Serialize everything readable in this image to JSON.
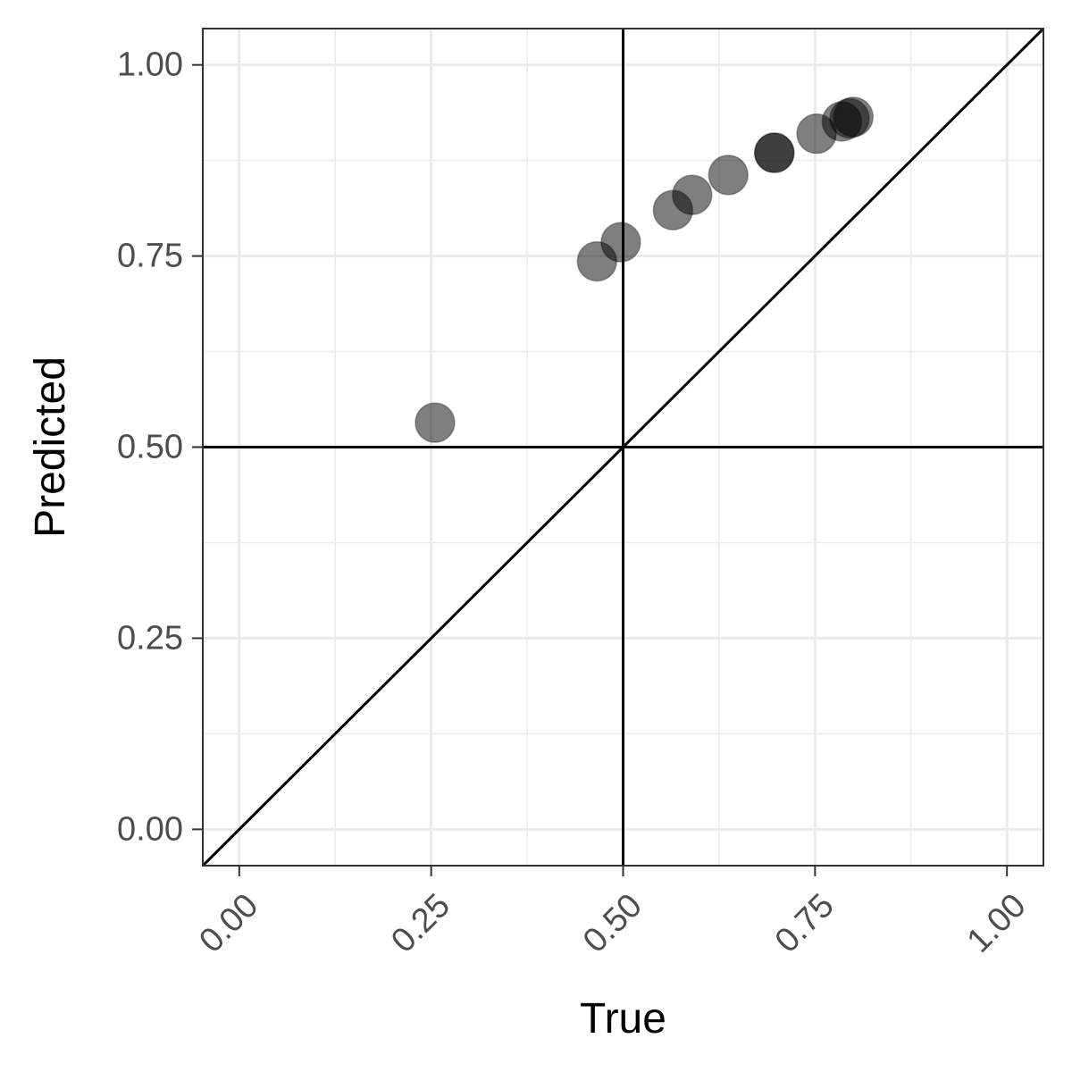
{
  "chart_data": {
    "type": "scatter",
    "title": "",
    "xlabel": "True",
    "ylabel": "Predicted",
    "xlim": [
      -0.0475,
      1.0475
    ],
    "ylim": [
      -0.0475,
      1.0475
    ],
    "x_ticks": [
      0,
      0.25,
      0.5,
      0.75,
      1
    ],
    "x_tick_labels": [
      "0.00",
      "0.25",
      "0.50",
      "0.75",
      "1.00"
    ],
    "y_ticks": [
      0,
      0.25,
      0.5,
      0.75,
      1
    ],
    "y_tick_labels": [
      "0.00",
      "0.25",
      "0.50",
      "0.75",
      "1.00"
    ],
    "grid": true,
    "reference_lines": {
      "vline_x": 0.5,
      "hline_y": 0.5,
      "diagonal": "y = x"
    },
    "point_color": "#000000",
    "point_alpha": 0.5,
    "points": [
      {
        "x": 0.255,
        "y": 0.532
      },
      {
        "x": 0.466,
        "y": 0.743
      },
      {
        "x": 0.497,
        "y": 0.768
      },
      {
        "x": 0.565,
        "y": 0.81
      },
      {
        "x": 0.59,
        "y": 0.83
      },
      {
        "x": 0.637,
        "y": 0.856
      },
      {
        "x": 0.697,
        "y": 0.885
      },
      {
        "x": 0.697,
        "y": 0.885
      },
      {
        "x": 0.752,
        "y": 0.91
      },
      {
        "x": 0.785,
        "y": 0.926
      },
      {
        "x": 0.795,
        "y": 0.93
      },
      {
        "x": 0.8,
        "y": 0.932
      }
    ]
  }
}
